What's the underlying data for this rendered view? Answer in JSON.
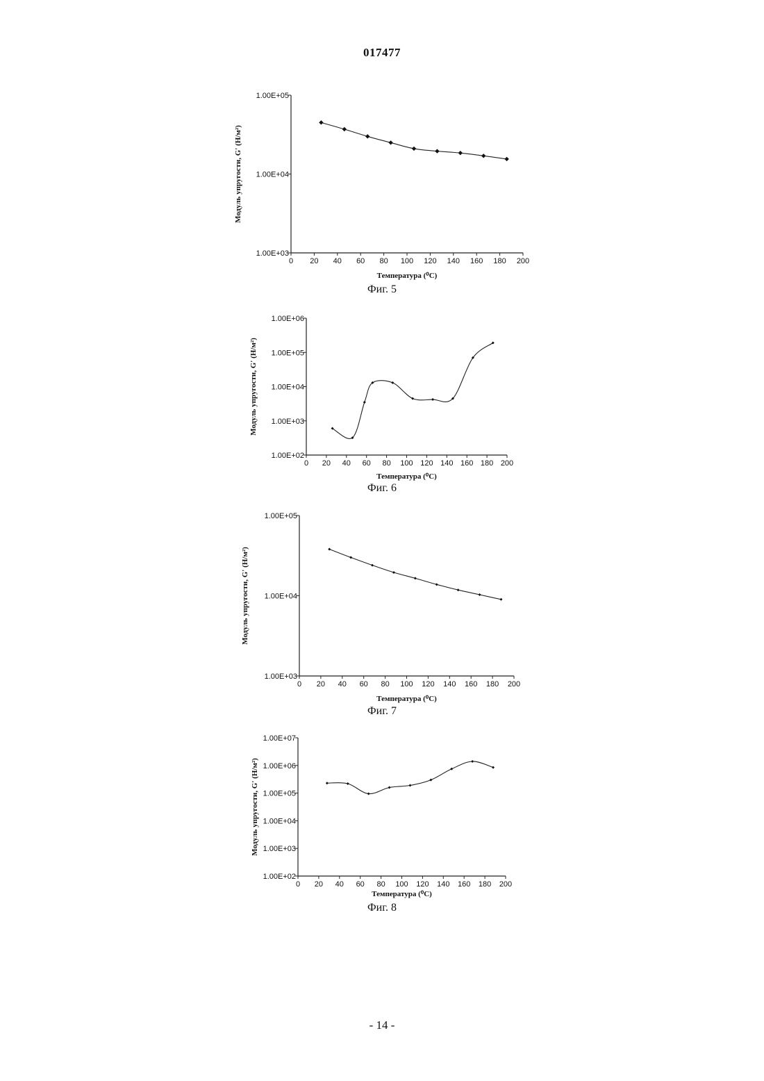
{
  "page": {
    "header_number": "017477",
    "footer_number": "- 14 -"
  },
  "chart_data": [
    {
      "type": "line",
      "caption": "Фиг. 5",
      "xlabel": "Температура (⁰С)",
      "ylabel": "Модуль упругости, G' (Н/м²)",
      "yscale": "log",
      "xlim": [
        0,
        200
      ],
      "ylim": [
        1000,
        100000
      ],
      "x_ticks": [
        "0",
        "20",
        "40",
        "60",
        "80",
        "100",
        "120",
        "140",
        "160",
        "180",
        "200"
      ],
      "y_ticks": [
        "1.00E+03",
        "1.00E+04",
        "1.00E+05"
      ],
      "grid": false,
      "series": [
        {
          "x": [
            26,
            46,
            66,
            86,
            106,
            126,
            146,
            166,
            186
          ],
          "y": [
            45000,
            37000,
            30000,
            25000,
            21000,
            19500,
            18500,
            17000,
            15500
          ]
        }
      ]
    },
    {
      "type": "line",
      "caption": "Фиг. 6",
      "xlabel": "Температура (⁰С)",
      "ylabel": "Модуль упругости, G' (Н/м²)",
      "yscale": "log",
      "xlim": [
        0,
        200
      ],
      "ylim": [
        100,
        1000000
      ],
      "x_ticks": [
        "0",
        "20",
        "40",
        "60",
        "80",
        "100",
        "120",
        "140",
        "160",
        "180",
        "200"
      ],
      "y_ticks": [
        "1.00E+02",
        "1.00E+03",
        "1.00E+04",
        "1.00E+05",
        "1.00E+06"
      ],
      "grid": false,
      "series": [
        {
          "x": [
            26,
            46,
            58,
            66,
            86,
            106,
            126,
            146,
            166,
            186
          ],
          "y": [
            600,
            320,
            3500,
            13000,
            13000,
            4500,
            4200,
            4500,
            70000,
            190000
          ]
        }
      ]
    },
    {
      "type": "line",
      "caption": "Фиг. 7",
      "xlabel": "Температура (⁰С)",
      "ylabel": "Модуль упругости, G' (Н/м²)",
      "yscale": "log",
      "xlim": [
        0,
        200
      ],
      "ylim": [
        1000,
        100000
      ],
      "x_ticks": [
        "0",
        "20",
        "40",
        "60",
        "80",
        "100",
        "120",
        "140",
        "160",
        "180",
        "200"
      ],
      "y_ticks": [
        "1.00E+03",
        "1.00E+04",
        "1.00E+05"
      ],
      "grid": false,
      "series": [
        {
          "x": [
            28,
            48,
            68,
            88,
            108,
            128,
            148,
            168,
            188
          ],
          "y": [
            38000,
            30000,
            24000,
            19500,
            16500,
            13800,
            11800,
            10300,
            9000
          ]
        }
      ]
    },
    {
      "type": "line",
      "caption": "Фиг. 8",
      "xlabel": "Температура (⁰С)",
      "ylabel": "Модуль упругости, G' (Н/м²)",
      "yscale": "log",
      "xlim": [
        0,
        200
      ],
      "ylim": [
        100,
        10000000
      ],
      "x_ticks": [
        "0",
        "20",
        "40",
        "60",
        "80",
        "100",
        "120",
        "140",
        "160",
        "180",
        "200"
      ],
      "y_ticks": [
        "1.00E+02",
        "1.00E+03",
        "1.00E+04",
        "1.00E+05",
        "1.00E+06",
        "1.00E+07"
      ],
      "grid": false,
      "series": [
        {
          "x": [
            28,
            48,
            68,
            88,
            108,
            128,
            148,
            168,
            188
          ],
          "y": [
            230000,
            220000,
            95000,
            160000,
            190000,
            300000,
            750000,
            1400000,
            850000
          ]
        }
      ]
    }
  ]
}
